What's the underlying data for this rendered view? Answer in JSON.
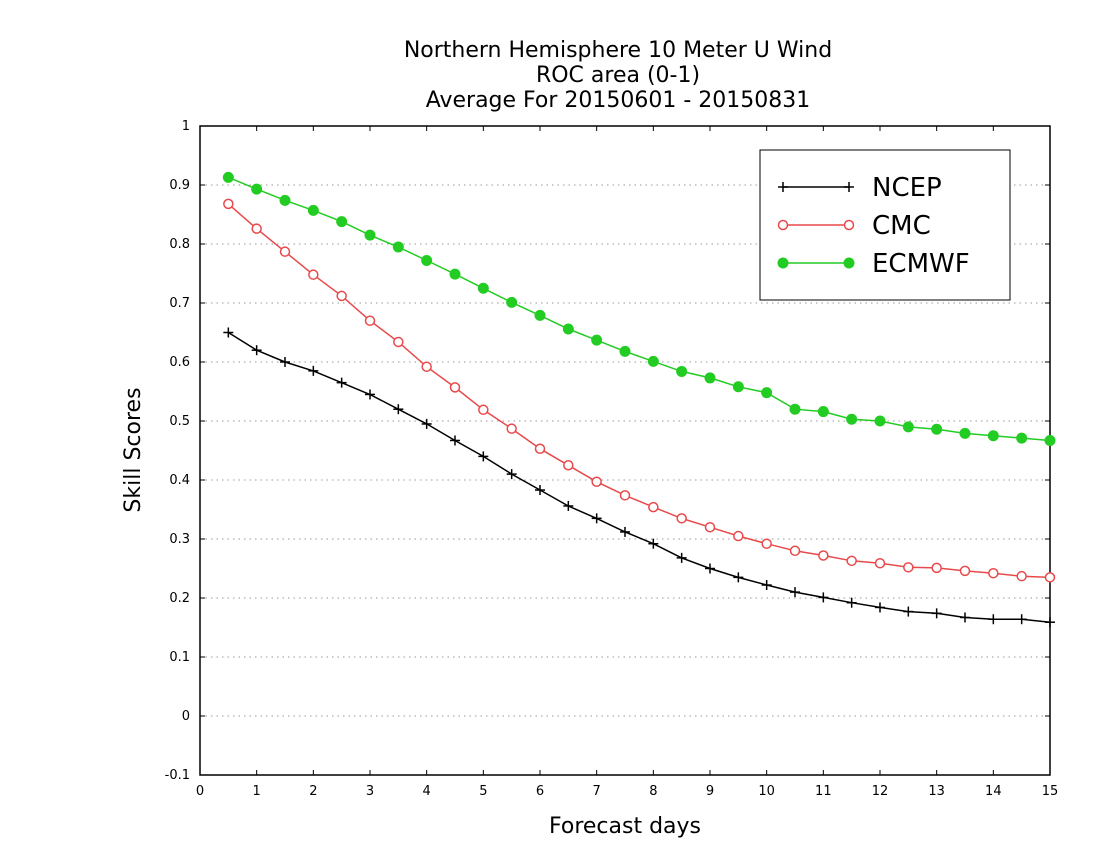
{
  "chart_data": {
    "type": "line",
    "title_lines": [
      "Northern Hemisphere 10 Meter U Wind",
      "ROC area (0-1)",
      "Average For 20150601 - 20150831"
    ],
    "xlabel": "Forecast days",
    "ylabel": "Skill Scores",
    "xlim": [
      0,
      15
    ],
    "ylim": [
      -0.1,
      1
    ],
    "xticks": [
      "0",
      "1",
      "2",
      "3",
      "4",
      "5",
      "6",
      "7",
      "8",
      "9",
      "10",
      "11",
      "12",
      "13",
      "14",
      "15"
    ],
    "yticks": [
      "-0.1",
      "0",
      "0.1",
      "0.2",
      "0.3",
      "0.4",
      "0.5",
      "0.6",
      "0.7",
      "0.8",
      "0.9",
      "1"
    ],
    "grid": "horizontal dotted",
    "legend_position": "top-right",
    "x": [
      0.5,
      1,
      1.5,
      2,
      2.5,
      3,
      3.5,
      4,
      4.5,
      5,
      5.5,
      6,
      6.5,
      7,
      7.5,
      8,
      8.5,
      9,
      9.5,
      10,
      10.5,
      11,
      11.5,
      12,
      12.5,
      13,
      13.5,
      14,
      14.5,
      15
    ],
    "series": [
      {
        "name": "NCEP",
        "color": "#000000",
        "marker": "plus",
        "values": [
          0.65,
          0.62,
          0.6,
          0.585,
          0.565,
          0.545,
          0.52,
          0.495,
          0.467,
          0.44,
          0.41,
          0.383,
          0.356,
          0.335,
          0.312,
          0.292,
          0.268,
          0.25,
          0.235,
          0.222,
          0.21,
          0.201,
          0.192,
          0.184,
          0.177,
          0.174,
          0.167,
          0.164,
          0.164,
          0.159
        ]
      },
      {
        "name": "CMC",
        "color": "#e8494b",
        "marker": "open-circle",
        "values": [
          0.868,
          0.826,
          0.787,
          0.748,
          0.712,
          0.67,
          0.634,
          0.592,
          0.557,
          0.519,
          0.487,
          0.453,
          0.425,
          0.397,
          0.374,
          0.354,
          0.335,
          0.32,
          0.305,
          0.292,
          0.28,
          0.272,
          0.263,
          0.259,
          0.252,
          0.251,
          0.246,
          0.242,
          0.237,
          0.235
        ]
      },
      {
        "name": "ECMWF",
        "color": "#22cc22",
        "marker": "filled-circle",
        "values": [
          0.913,
          0.893,
          0.874,
          0.857,
          0.838,
          0.815,
          0.795,
          0.772,
          0.749,
          0.725,
          0.701,
          0.679,
          0.656,
          0.637,
          0.618,
          0.601,
          0.584,
          0.573,
          0.558,
          0.548,
          0.52,
          0.516,
          0.503,
          0.5,
          0.49,
          0.486,
          0.479,
          0.475,
          0.471,
          0.467
        ]
      }
    ]
  }
}
